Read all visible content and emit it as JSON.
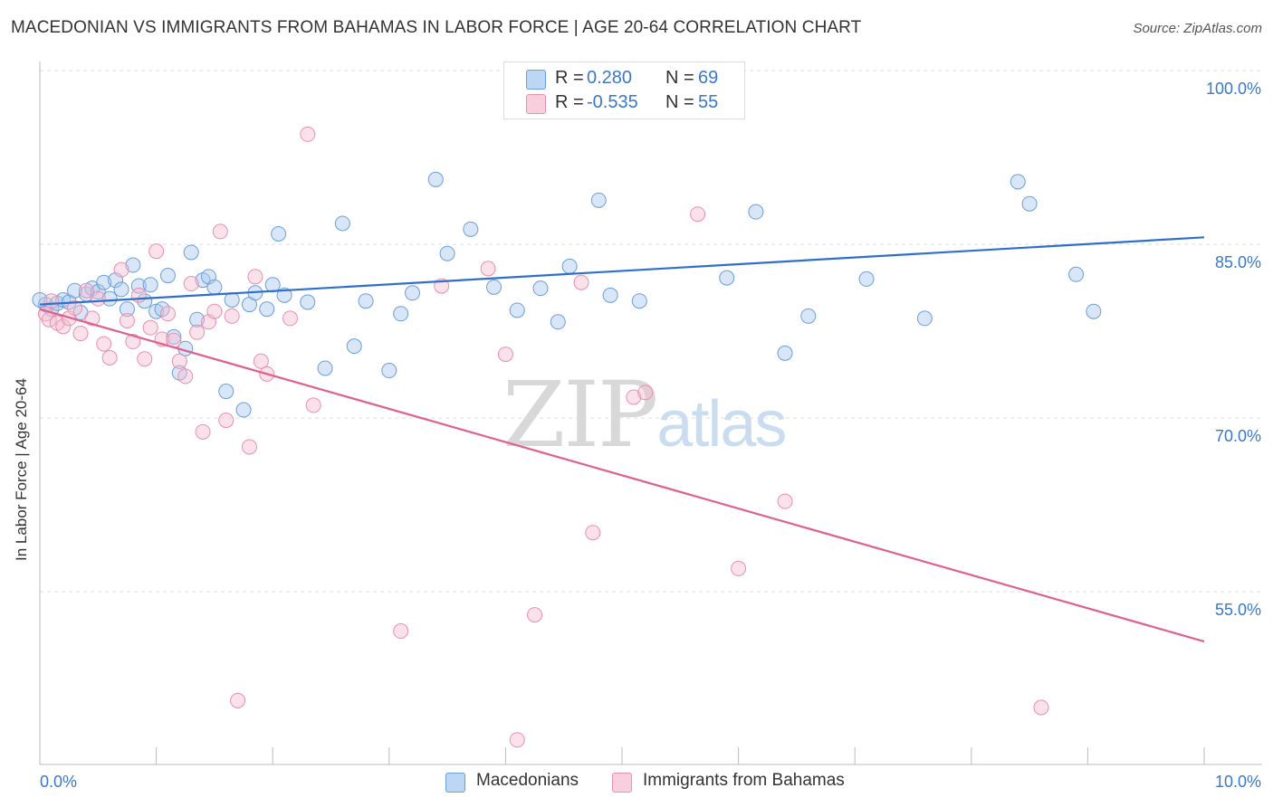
{
  "header": {
    "title": "MACEDONIAN VS IMMIGRANTS FROM BAHAMAS IN LABOR FORCE | AGE 20-64 CORRELATION CHART",
    "source": "Source: ZipAtlas.com"
  },
  "legend": {
    "rows": [
      {
        "r_label": "R =",
        "r_value": "0.280",
        "n_label": "N =",
        "n_value": "69"
      },
      {
        "r_label": "R =",
        "r_value": "-0.535",
        "n_label": "N =",
        "n_value": "55"
      }
    ]
  },
  "bottom_legend": {
    "items": [
      "Macedonians",
      "Immigrants from Bahamas"
    ]
  },
  "watermark": {
    "zip": "ZIP",
    "atlas": "atlas"
  },
  "colors": {
    "blue_fill": "#a9c8ef",
    "blue_stroke": "#6a9fd8",
    "blue_line": "#2f6fcc",
    "pink_fill": "#f7bcd0",
    "pink_stroke": "#e98fae",
    "pink_line": "#e0608c",
    "tick_label": "#3a78c9",
    "grid": "#dddddd"
  },
  "chart_data": {
    "type": "scatter",
    "title": "MACEDONIAN VS IMMIGRANTS FROM BAHAMAS IN LABOR FORCE | AGE 20-64 CORRELATION CHART",
    "xlabel": "",
    "ylabel": "In Labor Force | Age 20-64",
    "xlim": [
      0,
      10
    ],
    "ylim": [
      41.5,
      100
    ],
    "x_tick_labels": [
      "0.0%",
      "10.0%"
    ],
    "y_ticks": [
      55,
      70,
      85,
      100
    ],
    "y_tick_labels": [
      "55.0%",
      "70.0%",
      "85.0%",
      "100.0%"
    ],
    "grid": true,
    "legend_position": "top-center",
    "series": [
      {
        "name": "Macedonians",
        "color": "#a9c8ef",
        "points": [
          [
            0.05,
            79.8
          ],
          [
            0.1,
            79.4
          ],
          [
            0.15,
            79.9
          ],
          [
            0.2,
            80.2
          ],
          [
            0.25,
            80.0
          ],
          [
            0.3,
            81.0
          ],
          [
            0.35,
            79.1
          ],
          [
            0.4,
            80.7
          ],
          [
            0.45,
            81.2
          ],
          [
            0.5,
            80.9
          ],
          [
            0.55,
            81.7
          ],
          [
            0.6,
            80.3
          ],
          [
            0.65,
            81.9
          ],
          [
            0.7,
            81.1
          ],
          [
            0.75,
            79.4
          ],
          [
            0.8,
            83.2
          ],
          [
            0.85,
            81.4
          ],
          [
            0.9,
            80.1
          ],
          [
            0.95,
            81.5
          ],
          [
            1.0,
            79.2
          ],
          [
            1.05,
            79.4
          ],
          [
            1.1,
            82.3
          ],
          [
            1.15,
            77.0
          ],
          [
            1.2,
            73.9
          ],
          [
            1.25,
            76.0
          ],
          [
            1.3,
            84.3
          ],
          [
            1.35,
            78.5
          ],
          [
            1.4,
            81.9
          ],
          [
            1.45,
            82.2
          ],
          [
            1.5,
            81.3
          ],
          [
            1.6,
            72.3
          ],
          [
            1.65,
            80.2
          ],
          [
            1.75,
            70.7
          ],
          [
            1.8,
            79.8
          ],
          [
            1.85,
            80.8
          ],
          [
            1.95,
            79.4
          ],
          [
            2.0,
            81.5
          ],
          [
            2.05,
            85.9
          ],
          [
            2.1,
            80.6
          ],
          [
            2.3,
            80.0
          ],
          [
            2.45,
            74.3
          ],
          [
            2.6,
            86.8
          ],
          [
            2.7,
            76.2
          ],
          [
            2.8,
            80.1
          ],
          [
            3.0,
            74.1
          ],
          [
            3.1,
            79.0
          ],
          [
            3.2,
            80.8
          ],
          [
            3.4,
            90.6
          ],
          [
            3.5,
            84.2
          ],
          [
            3.7,
            86.3
          ],
          [
            3.9,
            81.3
          ],
          [
            4.1,
            79.3
          ],
          [
            4.3,
            81.2
          ],
          [
            4.45,
            78.3
          ],
          [
            4.55,
            83.1
          ],
          [
            4.8,
            88.8
          ],
          [
            4.9,
            80.6
          ],
          [
            5.15,
            80.1
          ],
          [
            5.9,
            82.1
          ],
          [
            6.15,
            87.8
          ],
          [
            6.4,
            75.6
          ],
          [
            6.6,
            78.8
          ],
          [
            8.4,
            90.4
          ],
          [
            8.5,
            88.5
          ],
          [
            7.1,
            82.0
          ],
          [
            7.6,
            78.6
          ],
          [
            8.9,
            82.4
          ],
          [
            9.05,
            79.2
          ],
          [
            0.0,
            80.2
          ]
        ]
      },
      {
        "name": "Immigrants from Bahamas",
        "color": "#f7bcd0",
        "points": [
          [
            0.05,
            79.0
          ],
          [
            0.08,
            78.5
          ],
          [
            0.1,
            80.1
          ],
          [
            0.15,
            78.2
          ],
          [
            0.2,
            77.9
          ],
          [
            0.25,
            78.6
          ],
          [
            0.3,
            79.5
          ],
          [
            0.35,
            77.3
          ],
          [
            0.4,
            81.0
          ],
          [
            0.45,
            78.6
          ],
          [
            0.5,
            80.3
          ],
          [
            0.55,
            76.4
          ],
          [
            0.6,
            75.2
          ],
          [
            0.7,
            82.8
          ],
          [
            0.75,
            78.4
          ],
          [
            0.8,
            76.6
          ],
          [
            0.85,
            80.6
          ],
          [
            0.9,
            75.1
          ],
          [
            0.95,
            77.8
          ],
          [
            1.0,
            84.4
          ],
          [
            1.05,
            76.8
          ],
          [
            1.1,
            79.0
          ],
          [
            1.15,
            76.7
          ],
          [
            1.2,
            74.9
          ],
          [
            1.25,
            73.6
          ],
          [
            1.3,
            81.6
          ],
          [
            1.35,
            77.4
          ],
          [
            1.4,
            68.8
          ],
          [
            1.45,
            78.3
          ],
          [
            1.5,
            79.2
          ],
          [
            1.55,
            86.1
          ],
          [
            1.6,
            69.8
          ],
          [
            1.65,
            78.8
          ],
          [
            1.7,
            45.6
          ],
          [
            1.8,
            67.5
          ],
          [
            1.85,
            82.2
          ],
          [
            1.9,
            74.9
          ],
          [
            1.95,
            73.8
          ],
          [
            2.15,
            78.6
          ],
          [
            2.3,
            94.5
          ],
          [
            2.35,
            71.1
          ],
          [
            3.1,
            51.6
          ],
          [
            3.45,
            81.4
          ],
          [
            3.85,
            82.9
          ],
          [
            4.0,
            75.5
          ],
          [
            4.1,
            42.2
          ],
          [
            4.25,
            53.0
          ],
          [
            4.65,
            81.7
          ],
          [
            4.75,
            60.1
          ],
          [
            5.1,
            71.8
          ],
          [
            5.2,
            72.2
          ],
          [
            5.65,
            87.6
          ],
          [
            6.0,
            57.0
          ],
          [
            6.4,
            62.8
          ],
          [
            8.6,
            45.0
          ]
        ]
      }
    ],
    "trend_lines": [
      {
        "series": "Macedonians",
        "x": [
          0,
          10
        ],
        "y": [
          79.8,
          85.6
        ]
      },
      {
        "series": "Immigrants from Bahamas",
        "x": [
          0,
          10
        ],
        "y": [
          79.4,
          50.7
        ]
      }
    ]
  }
}
